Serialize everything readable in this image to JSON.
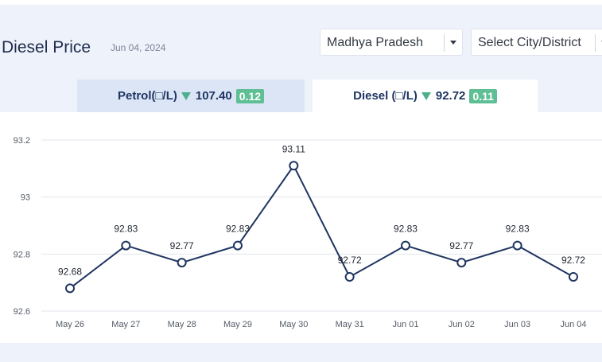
{
  "header": {
    "title": "Diesel Price",
    "date": "Jun 04, 2024"
  },
  "filters": {
    "state": "Madhya Pradesh",
    "city_placeholder": "Select City/District"
  },
  "tabs": [
    {
      "label": "Petrol(□/L)",
      "price": "107.40",
      "change": "0.12",
      "direction": "down",
      "active": false
    },
    {
      "label": "Diesel (□/L)",
      "price": "92.72",
      "change": "0.11",
      "direction": "down",
      "active": true
    }
  ],
  "colors": {
    "line": "#1f3561",
    "badge": "#5fbf94",
    "down_arrow": "#4caf8e"
  },
  "chart_data": {
    "type": "line",
    "categories": [
      "May 26",
      "May 27",
      "May 28",
      "May 29",
      "May 30",
      "May 31",
      "Jun 01",
      "Jun 02",
      "Jun 03",
      "Jun 04"
    ],
    "series": [
      {
        "values": [
          92.68,
          92.83,
          92.77,
          92.83,
          93.11,
          92.72,
          92.83,
          92.77,
          92.83,
          92.72
        ]
      }
    ],
    "data_labels": [
      "92.68",
      "92.83",
      "92.77",
      "92.83",
      "93.11",
      "92.72",
      "92.83",
      "92.77",
      "92.83",
      "92.72"
    ],
    "yticks": [
      92.6,
      92.8,
      93,
      93.2
    ],
    "ytick_labels": [
      "92.6",
      "92.8",
      "93",
      "93.2"
    ],
    "ylim": [
      92.6,
      93.2
    ],
    "grid": true,
    "title": "",
    "xlabel": "",
    "ylabel": ""
  }
}
